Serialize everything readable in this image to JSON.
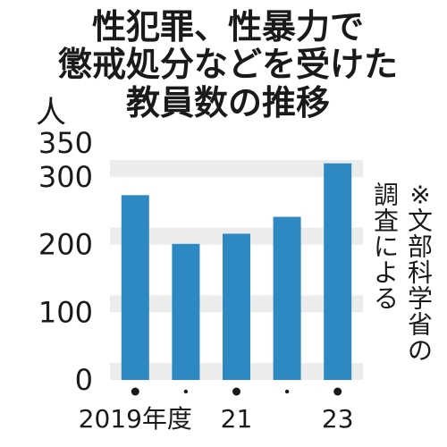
{
  "title_lines": [
    "性犯罪、性暴力で",
    "懲戒処分などを受けた",
    "教員数の推移"
  ],
  "unit_label": "人",
  "note_lines": [
    "※文部科学省の",
    "調査による"
  ],
  "colors": {
    "bar": "#2e88c2",
    "band": "#ececec",
    "text": "#1a1a1a",
    "background": "#ffffff"
  },
  "chart_data": {
    "type": "bar",
    "categories": [
      "2019年度",
      "",
      "21",
      "",
      "23"
    ],
    "values": [
      273,
      201,
      216,
      241,
      320
    ],
    "title": "性犯罪、性暴力で懲戒処分などを受けた教員数の推移",
    "xlabel": "",
    "ylabel": "人",
    "ylim": [
      0,
      350
    ],
    "yticks": [
      0,
      100,
      200,
      300,
      350
    ],
    "grid": "alternating horizontal bands",
    "legend": "none"
  }
}
